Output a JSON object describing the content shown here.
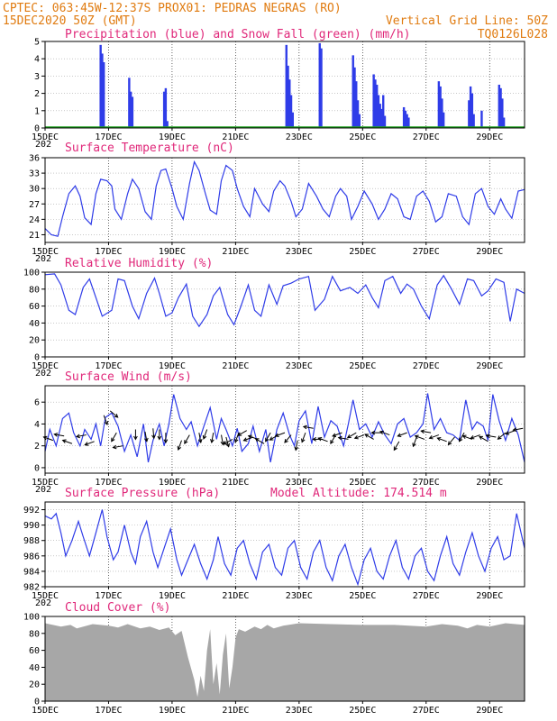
{
  "header": {
    "line1": "CPTEC:   063:45W-12:37S  PROX01: PEDRAS NEGRAS (RO)",
    "date": "15DEC2020 50Z (GMT)",
    "grid_note": "Vertical Grid Line: 50Z",
    "model": "TQ0126L028"
  },
  "x_ticks": [
    "15DEC",
    "17DEC",
    "19DEC",
    "21DEC",
    "23DEC",
    "25DEC",
    "27DEC",
    "29DEC"
  ],
  "year_fragment": "202",
  "chart_data": [
    {
      "id": "precip",
      "type": "bar",
      "title": "Precipitation (blue) and Snow Fall (green) (mm/h)",
      "ylim": [
        0,
        5
      ],
      "yticks": [
        "0",
        "1",
        "2",
        "3",
        "4",
        "5"
      ],
      "x_days": [
        1.75,
        1.8,
        1.85,
        2.65,
        2.7,
        2.75,
        3.75,
        3.8,
        3.85,
        7.6,
        7.65,
        7.7,
        7.75,
        7.8,
        8.65,
        8.7,
        9.7,
        9.75,
        9.8,
        9.85,
        9.9,
        10.35,
        10.4,
        10.45,
        10.5,
        10.55,
        10.6,
        10.65,
        10.7,
        11.3,
        11.35,
        11.4,
        11.45,
        12.4,
        12.45,
        12.5,
        12.55,
        13.35,
        13.4,
        13.45,
        13.5,
        13.75,
        14.3,
        14.35,
        14.4,
        14.45
      ],
      "values": [
        4.8,
        4.3,
        3.8,
        2.9,
        2.1,
        1.8,
        2.1,
        2.3,
        0.4,
        4.8,
        3.6,
        2.8,
        1.9,
        0.9,
        4.9,
        4.6,
        4.2,
        3.5,
        2.7,
        1.6,
        0.8,
        3.1,
        2.8,
        2.5,
        1.9,
        1.4,
        1.1,
        1.9,
        0.7,
        1.2,
        1.0,
        0.8,
        0.6,
        2.7,
        2.4,
        1.7,
        0.9,
        1.6,
        2.4,
        2.0,
        0.8,
        1.0,
        2.5,
        2.3,
        1.7,
        0.6
      ],
      "snow_value": 0
    },
    {
      "id": "temp",
      "type": "line",
      "title": "Surface Temperature (nC)",
      "ylim": [
        19.5,
        36
      ],
      "yticks": [
        "21",
        "24",
        "27",
        "30",
        "33",
        "36"
      ],
      "x_days": [
        0,
        0.2,
        0.4,
        0.55,
        0.75,
        0.95,
        1.1,
        1.25,
        1.45,
        1.6,
        1.75,
        1.95,
        2.1,
        2.2,
        2.4,
        2.6,
        2.75,
        2.95,
        3.15,
        3.35,
        3.5,
        3.65,
        3.8,
        4.0,
        4.15,
        4.35,
        4.55,
        4.7,
        4.85,
        5.05,
        5.2,
        5.4,
        5.55,
        5.7,
        5.9,
        6.05,
        6.25,
        6.45,
        6.6,
        6.85,
        7.05,
        7.2,
        7.4,
        7.55,
        7.75,
        7.9,
        8.1,
        8.3,
        8.55,
        8.75,
        8.95,
        9.15,
        9.3,
        9.5,
        9.65,
        9.85,
        10.05,
        10.3,
        10.5,
        10.7,
        10.9,
        11.1,
        11.3,
        11.5,
        11.7,
        11.9,
        12.1,
        12.3,
        12.5,
        12.7,
        12.95,
        13.15,
        13.35,
        13.55,
        13.75,
        13.95,
        14.15,
        14.35,
        14.5,
        14.7,
        14.9,
        15.1
      ],
      "values": [
        22.2,
        21.0,
        20.7,
        24.5,
        29.0,
        30.5,
        28.5,
        24.3,
        23.0,
        29.0,
        31.8,
        31.5,
        30.5,
        26.0,
        24.0,
        29.0,
        31.8,
        30.0,
        25.5,
        24.0,
        30.5,
        33.5,
        33.8,
        30.0,
        26.5,
        24.0,
        31.0,
        35.2,
        33.5,
        29.0,
        25.8,
        25.0,
        31.5,
        34.5,
        33.5,
        30.0,
        26.5,
        24.5,
        30.0,
        27.0,
        25.5,
        29.5,
        31.5,
        30.5,
        27.5,
        24.5,
        26.0,
        31.0,
        28.5,
        26.0,
        24.5,
        28.5,
        30.0,
        28.5,
        24.0,
        26.5,
        29.5,
        27.0,
        24.0,
        26.0,
        29.0,
        28.0,
        24.5,
        24.0,
        28.5,
        29.5,
        27.5,
        23.5,
        24.5,
        29.0,
        28.5,
        24.5,
        23.0,
        29.0,
        30.0,
        26.5,
        25.0,
        28.0,
        26.0,
        24.2,
        29.5,
        29.8
      ]
    },
    {
      "id": "humidity",
      "type": "line",
      "title": "Relative Humidity (%)",
      "ylim": [
        0,
        100
      ],
      "yticks": [
        "0",
        "20",
        "40",
        "60",
        "80",
        "100"
      ],
      "x_days": [
        0,
        0.3,
        0.5,
        0.75,
        0.95,
        1.2,
        1.4,
        1.6,
        1.8,
        2.1,
        2.3,
        2.5,
        2.75,
        2.95,
        3.2,
        3.45,
        3.6,
        3.8,
        4.0,
        4.2,
        4.45,
        4.65,
        4.85,
        5.1,
        5.3,
        5.5,
        5.75,
        5.95,
        6.15,
        6.4,
        6.6,
        6.8,
        7.05,
        7.3,
        7.5,
        7.75,
        8.0,
        8.3,
        8.5,
        8.8,
        9.05,
        9.3,
        9.6,
        9.85,
        10.1,
        10.3,
        10.5,
        10.7,
        10.95,
        11.2,
        11.4,
        11.6,
        11.85,
        12.1,
        12.35,
        12.55,
        12.8,
        13.05,
        13.3,
        13.5,
        13.75,
        13.95,
        14.2,
        14.45,
        14.65,
        14.85,
        15.1
      ],
      "values": [
        97,
        98,
        85,
        55,
        50,
        82,
        92,
        70,
        48,
        55,
        92,
        90,
        60,
        45,
        75,
        93,
        75,
        48,
        52,
        70,
        86,
        48,
        36,
        50,
        72,
        82,
        50,
        38,
        58,
        85,
        55,
        48,
        85,
        62,
        84,
        87,
        92,
        95,
        55,
        68,
        95,
        78,
        82,
        75,
        85,
        70,
        58,
        90,
        95,
        75,
        86,
        80,
        60,
        45,
        85,
        96,
        80,
        62,
        92,
        90,
        72,
        78,
        92,
        88,
        42,
        80,
        75
      ]
    },
    {
      "id": "wind",
      "type": "line",
      "title": "Surface Wind (m/s)",
      "ylim": [
        -0.5,
        7.5
      ],
      "yticks": [
        "0",
        "2",
        "4",
        "6"
      ],
      "x_days": [
        0,
        0.15,
        0.35,
        0.55,
        0.75,
        0.9,
        1.1,
        1.25,
        1.45,
        1.6,
        1.75,
        1.9,
        2.1,
        2.3,
        2.5,
        2.7,
        2.9,
        3.1,
        3.25,
        3.4,
        3.6,
        3.75,
        3.9,
        4.05,
        4.25,
        4.45,
        4.6,
        4.8,
        5.0,
        5.2,
        5.4,
        5.55,
        5.7,
        5.9,
        6.05,
        6.2,
        6.4,
        6.55,
        6.75,
        6.95,
        7.1,
        7.3,
        7.5,
        7.7,
        7.85,
        8.0,
        8.2,
        8.4,
        8.6,
        8.8,
        9.0,
        9.2,
        9.4,
        9.55,
        9.7,
        9.9,
        10.1,
        10.3,
        10.5,
        10.7,
        10.9,
        11.1,
        11.3,
        11.5,
        11.7,
        11.9,
        12.05,
        12.25,
        12.45,
        12.65,
        12.85,
        13.05,
        13.25,
        13.45,
        13.6,
        13.8,
        13.95,
        14.1,
        14.3,
        14.5,
        14.7,
        14.9,
        15.1
      ],
      "values": [
        1.5,
        3.5,
        2.0,
        4.5,
        5.0,
        3.2,
        2.0,
        3.5,
        2.6,
        4.0,
        2.0,
        4.6,
        5.0,
        3.8,
        1.5,
        3.0,
        1.0,
        4.0,
        0.5,
        2.5,
        4.0,
        2.0,
        4.0,
        6.7,
        4.5,
        3.5,
        4.2,
        2.0,
        3.8,
        5.5,
        2.6,
        4.5,
        3.5,
        2.0,
        3.6,
        1.5,
        2.2,
        3.8,
        1.5,
        3.5,
        0.5,
        3.5,
        5.0,
        3.0,
        2.0,
        4.3,
        5.2,
        2.2,
        5.6,
        2.8,
        4.3,
        3.8,
        2.0,
        4.0,
        6.2,
        3.5,
        4.0,
        2.8,
        4.2,
        3.0,
        2.2,
        4.0,
        4.5,
        2.8,
        3.2,
        4.0,
        6.8,
        3.5,
        4.5,
        3.2,
        3.0,
        2.5,
        6.2,
        3.5,
        4.2,
        3.8,
        2.5,
        6.7,
        4.3,
        2.5,
        4.5,
        3.0,
        0.5
      ],
      "barb_days": [
        0.25,
        0.6,
        0.85,
        1.3,
        1.55,
        1.85,
        2.05,
        2.25,
        2.45,
        2.85,
        3.15,
        3.4,
        3.6,
        3.8,
        4.3,
        4.55,
        4.85,
        5.1,
        5.3,
        5.55,
        5.7,
        5.9,
        6.1,
        6.35,
        6.55,
        6.7,
        6.9,
        7.1,
        7.35,
        7.55,
        7.75,
        7.95,
        8.2,
        8.45,
        8.75,
        8.9,
        9.15,
        9.35,
        9.55,
        9.8,
        10.05,
        10.35,
        10.6,
        10.85,
        11.15,
        11.4,
        11.7,
        11.95,
        12.15,
        12.4,
        12.65,
        12.9,
        13.2,
        13.45,
        13.7,
        13.95,
        14.2,
        14.5,
        14.8,
        15.05
      ],
      "barb_speed": [
        2.5,
        2.9,
        2.2,
        3.0,
        2.4,
        4.8,
        5.2,
        3.2,
        2.0,
        3.5,
        3.3,
        3.6,
        3.5,
        3.2,
        2.5,
        3.0,
        3.2,
        3.5,
        3.2,
        3.0,
        2.8,
        2.6,
        3.2,
        3.4,
        2.8,
        2.6,
        2.2,
        3.2,
        3.0,
        3.2,
        3.0,
        2.5,
        3.2,
        3.6,
        2.6,
        2.4,
        3.0,
        3.2,
        2.6,
        3.2,
        3.0,
        2.6,
        3.2,
        3.0,
        2.4,
        3.2,
        2.8,
        2.6,
        3.2,
        3.0,
        2.4,
        2.8,
        3.2,
        2.6,
        3.0,
        2.4,
        2.8,
        3.2,
        3.4,
        3.6
      ],
      "barb_dir_deg": [
        200,
        190,
        200,
        170,
        160,
        70,
        40,
        120,
        170,
        90,
        80,
        85,
        90,
        90,
        110,
        120,
        80,
        110,
        100,
        80,
        75,
        150,
        110,
        150,
        160,
        200,
        210,
        120,
        150,
        160,
        130,
        100,
        110,
        190,
        180,
        200,
        120,
        160,
        190,
        150,
        160,
        210,
        180,
        200,
        120,
        160,
        110,
        200,
        190,
        160,
        200,
        130,
        120,
        200,
        160,
        210,
        190,
        140,
        160,
        170
      ]
    },
    {
      "id": "pressure",
      "type": "line",
      "title": "Surface Pressure (hPa)",
      "note": "Model Altitude: 174.514 m",
      "ylim": [
        982,
        993
      ],
      "yticks": [
        "982",
        "984",
        "986",
        "988",
        "990",
        "992"
      ],
      "x_days": [
        0,
        0.2,
        0.35,
        0.5,
        0.65,
        0.85,
        1.05,
        1.2,
        1.4,
        1.6,
        1.8,
        1.95,
        2.15,
        2.3,
        2.5,
        2.7,
        2.85,
        3.0,
        3.2,
        3.4,
        3.55,
        3.75,
        3.95,
        4.15,
        4.3,
        4.5,
        4.7,
        4.9,
        5.1,
        5.3,
        5.45,
        5.65,
        5.85,
        6.05,
        6.25,
        6.45,
        6.65,
        6.85,
        7.05,
        7.25,
        7.45,
        7.65,
        7.85,
        8.05,
        8.25,
        8.45,
        8.65,
        8.85,
        9.05,
        9.25,
        9.45,
        9.65,
        9.85,
        10.05,
        10.25,
        10.45,
        10.65,
        10.85,
        11.05,
        11.25,
        11.45,
        11.65,
        11.85,
        12.05,
        12.25,
        12.45,
        12.65,
        12.85,
        13.05,
        13.25,
        13.45,
        13.65,
        13.85,
        14.05,
        14.25,
        14.45,
        14.65,
        14.85,
        15.1
      ],
      "values": [
        991.2,
        990.8,
        991.5,
        989.0,
        986.0,
        988.0,
        990.5,
        988.5,
        986.0,
        989.0,
        992.0,
        988.5,
        985.5,
        986.5,
        990.0,
        986.5,
        985.0,
        988.5,
        990.5,
        986.5,
        984.5,
        987.0,
        989.5,
        985.5,
        983.5,
        985.5,
        987.5,
        985.0,
        983.0,
        985.5,
        988.5,
        985.0,
        983.5,
        987.0,
        988.0,
        985.0,
        983.0,
        986.5,
        987.5,
        984.5,
        983.5,
        987.0,
        988.0,
        984.5,
        983.0,
        986.5,
        988.0,
        984.5,
        982.8,
        986.0,
        987.5,
        984.5,
        982.3,
        985.5,
        987.0,
        984.0,
        983.0,
        986.0,
        988.0,
        984.5,
        983.0,
        986.0,
        987.0,
        984.0,
        982.8,
        986.0,
        988.5,
        985.0,
        983.5,
        986.5,
        989.0,
        986.0,
        984.0,
        987.0,
        988.5,
        985.5,
        986.0,
        991.5,
        987.0
      ]
    },
    {
      "id": "cloud",
      "type": "area",
      "title": "Cloud Cover (%)",
      "ylim": [
        0,
        100
      ],
      "yticks": [
        "0",
        "20",
        "40",
        "60",
        "80",
        "100"
      ],
      "x_days": [
        0,
        0.5,
        0.8,
        1.0,
        1.5,
        2.0,
        2.3,
        2.6,
        3.0,
        3.3,
        3.6,
        3.9,
        4.1,
        4.3,
        4.5,
        4.7,
        4.8,
        4.9,
        5.0,
        5.1,
        5.2,
        5.3,
        5.4,
        5.5,
        5.6,
        5.7,
        5.8,
        5.9,
        6.0,
        6.1,
        6.3,
        6.6,
        6.8,
        7.0,
        7.2,
        7.5,
        8.0,
        9.0,
        10.0,
        11.0,
        12.0,
        12.5,
        13.0,
        13.3,
        13.6,
        14.0,
        14.5,
        15.1
      ],
      "values": [
        92,
        88,
        90,
        86,
        91,
        89,
        87,
        91,
        86,
        88,
        84,
        87,
        78,
        83,
        52,
        25,
        5,
        30,
        12,
        60,
        85,
        20,
        45,
        8,
        55,
        80,
        15,
        40,
        75,
        85,
        82,
        88,
        85,
        90,
        86,
        89,
        92,
        91,
        90,
        90,
        88,
        91,
        89,
        86,
        90,
        88,
        92,
        90
      ]
    }
  ]
}
